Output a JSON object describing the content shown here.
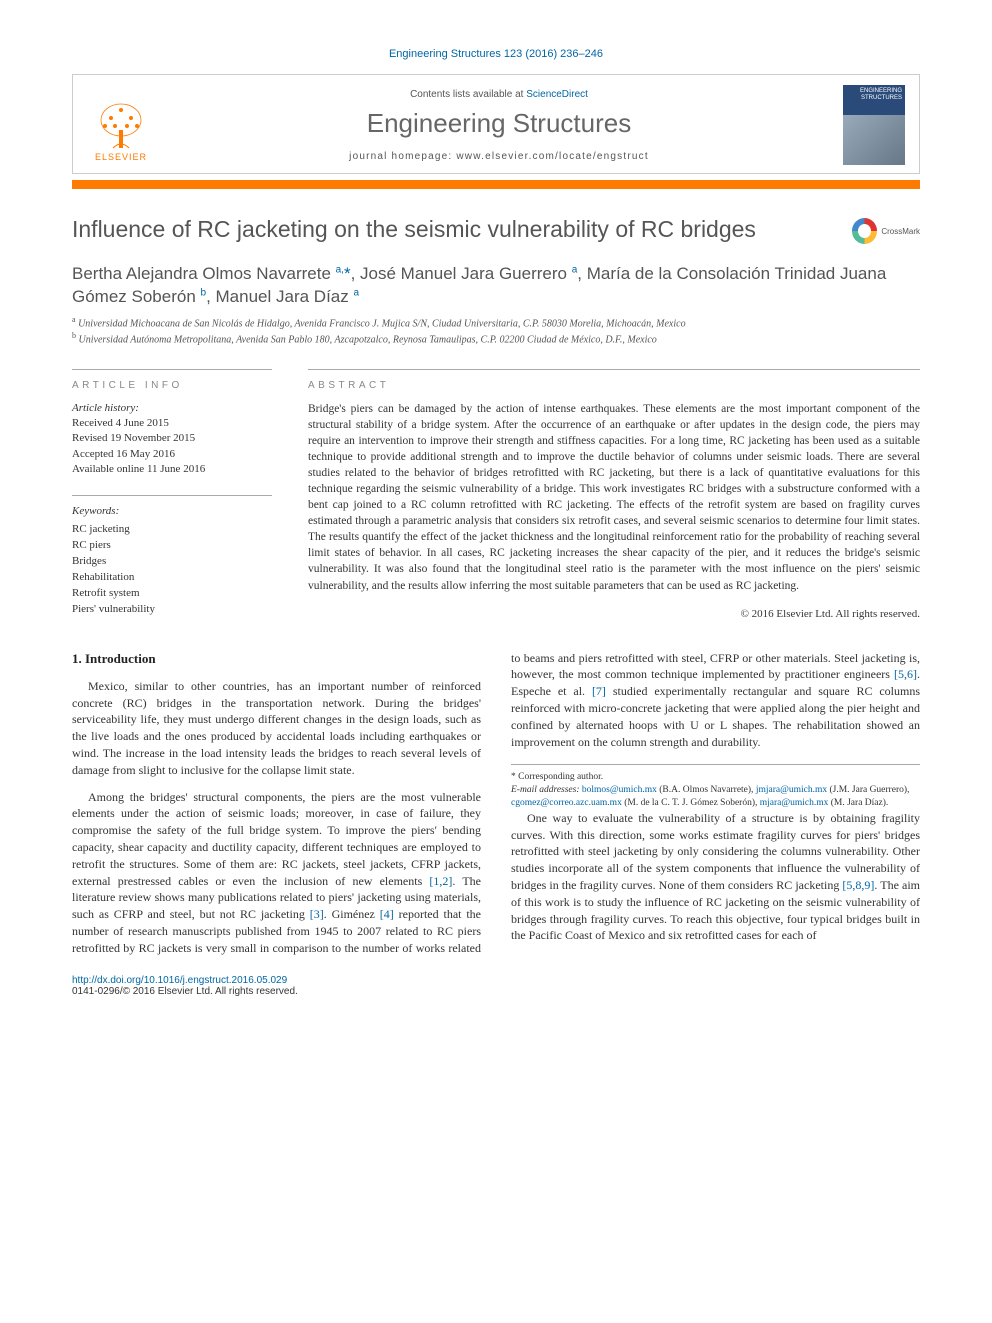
{
  "topref": "Engineering Structures 123 (2016) 236–246",
  "header": {
    "contents_prefix": "Contents lists available at ",
    "contents_link": "ScienceDirect",
    "journal": "Engineering Structures",
    "homepage_prefix": "journal homepage: ",
    "homepage_url": "www.elsevier.com/locate/engstruct",
    "publisher_logo_text": "ELSEVIER",
    "cover_label": "ENGINEERING STRUCTURES"
  },
  "title": "Influence of RC jacketing on the seismic vulnerability of RC bridges",
  "crossmark_label": "CrossMark",
  "authors_html": "Bertha Alejandra Olmos Navarrete <sup>a,</sup><span class='star'>*</span>, José Manuel Jara Guerrero <sup>a</sup>, María de la Consolación Trinidad Juana Gómez Soberón <sup>b</sup>, Manuel Jara Díaz <sup>a</sup>",
  "affiliations": [
    "a Universidad Michoacana de San Nicolás de Hidalgo, Avenida Francisco J. Mujica S/N, Ciudad Universitaria, C.P. 58030 Morelia, Michoacán, Mexico",
    "b Universidad Autónoma Metropolitana, Avenida San Pablo 180, Azcapotzalco, Reynosa Tamaulipas, C.P. 02200 Ciudad de México, D.F., Mexico"
  ],
  "labels": {
    "article_info": "ARTICLE INFO",
    "abstract": "ABSTRACT",
    "history": "Article history:",
    "keywords": "Keywords:"
  },
  "history": [
    "Received 4 June 2015",
    "Revised 19 November 2015",
    "Accepted 16 May 2016",
    "Available online 11 June 2016"
  ],
  "keywords": [
    "RC jacketing",
    "RC piers",
    "Bridges",
    "Rehabilitation",
    "Retrofit system",
    "Piers' vulnerability"
  ],
  "abstract": "Bridge's piers can be damaged by the action of intense earthquakes. These elements are the most important component of the structural stability of a bridge system. After the occurrence of an earthquake or after updates in the design code, the piers may require an intervention to improve their strength and stiffness capacities. For a long time, RC jacketing has been used as a suitable technique to provide additional strength and to improve the ductile behavior of columns under seismic loads. There are several studies related to the behavior of bridges retrofitted with RC jacketing, but there is a lack of quantitative evaluations for this technique regarding the seismic vulnerability of a bridge. This work investigates RC bridges with a substructure conformed with a bent cap joined to a RC column retrofitted with RC jacketing. The effects of the retrofit system are based on fragility curves estimated through a parametric analysis that considers six retrofit cases, and several seismic scenarios to determine four limit states. The results quantify the effect of the jacket thickness and the longitudinal reinforcement ratio for the probability of reaching several limit states of behavior. In all cases, RC jacketing increases the shear capacity of the pier, and it reduces the bridge's seismic vulnerability. It was also found that the longitudinal steel ratio is the parameter with the most influence on the piers' seismic vulnerability, and the results allow inferring the most suitable parameters that can be used as RC jacketing.",
  "copyright": "© 2016 Elsevier Ltd. All rights reserved.",
  "section_heading": "1. Introduction",
  "body": {
    "p1": "Mexico, similar to other countries, has an important number of reinforced concrete (RC) bridges in the transportation network. During the bridges' serviceability life, they must undergo different changes in the design loads, such as the live loads and the ones produced by accidental loads including earthquakes or wind. The increase in the load intensity leads the bridges to reach several levels of damage from slight to inclusive for the collapse limit state.",
    "p2a": "Among the bridges' structural components, the piers are the most vulnerable elements under the action of seismic loads; moreover, in case of failure, they compromise the safety of the full bridge system. To improve the piers' bending capacity, shear capacity and ductility capacity, different techniques are employed to retrofit the structures. Some of them are: RC jackets, steel jackets, CFRP jackets, external prestressed cables or even the inclusion of new elements ",
    "p2_cite1": "[1,2]",
    "p2b": ". The literature review shows many publications related to piers' jacketing using materials, such as CFRP and steel, but not RC jacketing ",
    "p2_cite2": "[3]",
    "p2c": ". Giménez ",
    "p2_cite3": "[4]",
    "p2d": " reported that the number of research manuscripts published from 1945 to 2007 related to RC piers retrofitted by RC jackets is very small in comparison to the number of works related to beams and piers retrofitted with steel, CFRP or other materials. Steel jacketing is, however, the most common technique implemented by practitioner engineers ",
    "p2_cite4": "[5,6]",
    "p2e": ". Espeche et al. ",
    "p2_cite5": "[7]",
    "p2f": " studied experimentally rectangular and square RC columns reinforced with micro-concrete jacketing that were applied along the pier height and confined by alternated hoops with U or L shapes. The rehabilitation showed an improvement on the column strength and durability.",
    "p3a": "One way to evaluate the vulnerability of a structure is by obtaining fragility curves. With this direction, some works estimate fragility curves for piers' bridges retrofitted with steel jacketing by only considering the columns vulnerability. Other studies incorporate all of the system components that influence the vulnerability of bridges in the fragility curves. None of them considers RC jacketing ",
    "p3_cite1": "[5,8,9]",
    "p3b": ". The aim of this work is to study the influence of RC jacketing on the seismic vulnerability of bridges through fragility curves. To reach this objective, four typical bridges built in the Pacific Coast of Mexico and six retrofitted cases for each of"
  },
  "footnote": {
    "corr": "* Corresponding author.",
    "email_label": "E-mail addresses: ",
    "emails": [
      {
        "addr": "bolmos@umich.mx",
        "who": "(B.A. Olmos Navarrete)"
      },
      {
        "addr": "jmjara@umich.mx",
        "who": "(J.M. Jara Guerrero)"
      },
      {
        "addr": "cgomez@correo.azc.uam.mx",
        "who": "(M. de la C. T. J. Gómez Soberón)"
      },
      {
        "addr": "mjara@umich.mx",
        "who": "(M. Jara Díaz)"
      }
    ]
  },
  "footer": {
    "doi": "http://dx.doi.org/10.1016/j.engstruct.2016.05.029",
    "issn": "0141-0296/© 2016 Elsevier Ltd. All rights reserved."
  },
  "colors": {
    "accent_orange": "#ff7a00",
    "link_blue": "#0066a5",
    "grey_text": "#555"
  }
}
